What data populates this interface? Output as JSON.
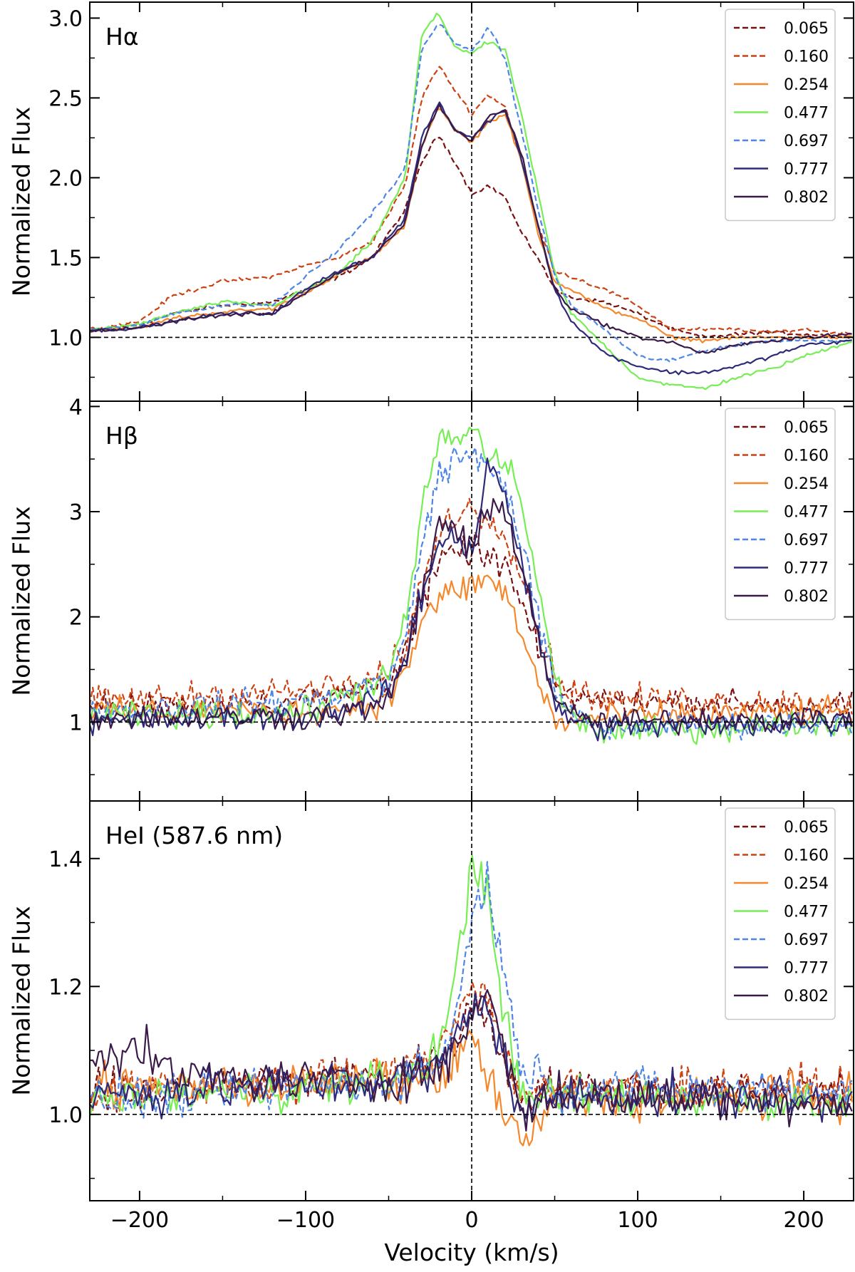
{
  "colors": {
    "0.065": "#7a1010",
    "0.160": "#cc4212",
    "0.254": "#f5882c",
    "0.477": "#77ee55",
    "0.697": "#4f86e6",
    "0.777": "#2e2a7a",
    "0.802": "#3a1a4a"
  },
  "chart_data": [
    {
      "type": "line",
      "title": "Hα",
      "xlabel": "",
      "ylabel": "Normalized Flux",
      "xlim": [
        -230,
        230
      ],
      "ylim": [
        0.6,
        3.1
      ],
      "yticks": [
        1.0,
        1.5,
        2.0,
        2.5,
        3.0
      ],
      "ytick_labels": [
        "1.0",
        "1.5",
        "2.0",
        "2.5",
        "3.0"
      ],
      "xticks": [
        -200,
        -100,
        0,
        100,
        200
      ],
      "noise": 0.012,
      "legend_position": "top-right",
      "series": [
        {
          "name": "0.065",
          "dashed": true,
          "x": [
            -230,
            -200,
            -180,
            -150,
            -120,
            -100,
            -80,
            -60,
            -40,
            -30,
            -20,
            -10,
            0,
            10,
            20,
            30,
            40,
            50,
            60,
            80,
            100,
            120,
            140,
            160,
            180,
            200,
            230
          ],
          "y": [
            1.04,
            1.08,
            1.15,
            1.2,
            1.22,
            1.3,
            1.38,
            1.5,
            1.8,
            2.1,
            2.27,
            2.1,
            1.9,
            1.95,
            1.88,
            1.65,
            1.5,
            1.3,
            1.25,
            1.22,
            1.15,
            1.05,
            1.0,
            1.02,
            1.03,
            1.02,
            1.0
          ]
        },
        {
          "name": "0.160",
          "dashed": true,
          "x": [
            -230,
            -200,
            -180,
            -150,
            -120,
            -100,
            -80,
            -60,
            -40,
            -30,
            -20,
            -10,
            0,
            10,
            20,
            30,
            40,
            50,
            60,
            80,
            100,
            120,
            140,
            160,
            180,
            200,
            230
          ],
          "y": [
            1.05,
            1.1,
            1.26,
            1.35,
            1.38,
            1.45,
            1.5,
            1.6,
            1.95,
            2.5,
            2.7,
            2.55,
            2.4,
            2.52,
            2.45,
            2.1,
            1.7,
            1.42,
            1.38,
            1.3,
            1.2,
            1.05,
            1.05,
            1.05,
            1.03,
            1.05,
            1.02
          ]
        },
        {
          "name": "0.254",
          "dashed": false,
          "x": [
            -230,
            -200,
            -180,
            -150,
            -120,
            -100,
            -80,
            -60,
            -40,
            -30,
            -20,
            -10,
            0,
            10,
            20,
            30,
            40,
            50,
            60,
            80,
            100,
            120,
            140,
            160,
            180,
            200,
            230
          ],
          "y": [
            1.04,
            1.06,
            1.12,
            1.16,
            1.18,
            1.28,
            1.4,
            1.5,
            1.7,
            2.2,
            2.45,
            2.3,
            2.22,
            2.35,
            2.4,
            2.1,
            1.65,
            1.35,
            1.3,
            1.18,
            1.12,
            1.0,
            0.98,
            1.0,
            1.0,
            1.0,
            1.0
          ]
        },
        {
          "name": "0.477",
          "dashed": false,
          "x": [
            -230,
            -200,
            -180,
            -150,
            -120,
            -100,
            -80,
            -60,
            -40,
            -30,
            -20,
            -10,
            0,
            10,
            20,
            30,
            40,
            50,
            60,
            80,
            100,
            120,
            140,
            160,
            180,
            200,
            230
          ],
          "y": [
            1.05,
            1.08,
            1.15,
            1.22,
            1.2,
            1.3,
            1.4,
            1.6,
            2.0,
            2.9,
            3.03,
            2.82,
            2.78,
            2.85,
            2.8,
            2.4,
            1.9,
            1.4,
            1.15,
            0.95,
            0.75,
            0.7,
            0.68,
            0.75,
            0.8,
            0.88,
            0.98
          ]
        },
        {
          "name": "0.697",
          "dashed": true,
          "x": [
            -230,
            -200,
            -180,
            -150,
            -120,
            -100,
            -80,
            -60,
            -40,
            -30,
            -20,
            -10,
            0,
            10,
            20,
            30,
            40,
            50,
            60,
            80,
            100,
            120,
            140,
            160,
            180,
            200,
            230
          ],
          "y": [
            1.05,
            1.07,
            1.15,
            1.2,
            1.2,
            1.38,
            1.55,
            1.78,
            2.05,
            2.8,
            2.97,
            2.85,
            2.78,
            2.95,
            2.75,
            2.3,
            1.8,
            1.38,
            1.2,
            1.05,
            0.88,
            0.85,
            0.92,
            0.95,
            0.98,
            0.98,
            0.98
          ]
        },
        {
          "name": "0.777",
          "dashed": false,
          "x": [
            -230,
            -200,
            -180,
            -150,
            -120,
            -100,
            -80,
            -60,
            -40,
            -30,
            -20,
            -10,
            0,
            10,
            20,
            30,
            40,
            50,
            60,
            80,
            100,
            120,
            140,
            160,
            180,
            200,
            230
          ],
          "y": [
            1.04,
            1.06,
            1.1,
            1.15,
            1.15,
            1.3,
            1.42,
            1.5,
            1.75,
            2.25,
            2.47,
            2.3,
            2.25,
            2.35,
            2.43,
            2.12,
            1.7,
            1.3,
            1.1,
            0.9,
            0.82,
            0.78,
            0.78,
            0.82,
            0.88,
            0.95,
            0.98
          ]
        },
        {
          "name": "0.802",
          "dashed": false,
          "x": [
            -230,
            -200,
            -180,
            -150,
            -120,
            -100,
            -80,
            -60,
            -40,
            -30,
            -20,
            -10,
            0,
            10,
            20,
            30,
            40,
            50,
            60,
            80,
            100,
            120,
            140,
            160,
            180,
            200,
            230
          ],
          "y": [
            1.04,
            1.06,
            1.1,
            1.14,
            1.15,
            1.28,
            1.4,
            1.5,
            1.72,
            2.2,
            2.46,
            2.3,
            2.23,
            2.38,
            2.43,
            2.15,
            1.7,
            1.3,
            1.18,
            1.08,
            1.0,
            0.97,
            0.9,
            0.95,
            0.98,
            1.0,
            1.02
          ]
        }
      ]
    },
    {
      "type": "line",
      "title": "Hβ",
      "xlabel": "",
      "ylabel": "Normalized Flux",
      "xlim": [
        -230,
        230
      ],
      "ylim": [
        0.25,
        4.05
      ],
      "yticks": [
        1,
        2,
        3,
        4
      ],
      "ytick_labels": [
        "1",
        "2",
        "3",
        "4"
      ],
      "xticks": [
        -200,
        -100,
        0,
        100,
        200
      ],
      "noise": 0.13,
      "legend_position": "top-right",
      "series": [
        {
          "name": "0.065",
          "dashed": true,
          "x": [
            -230,
            -100,
            -70,
            -50,
            -40,
            -30,
            -20,
            -10,
            0,
            10,
            20,
            30,
            40,
            50,
            60,
            80,
            230
          ],
          "y": [
            1.15,
            1.2,
            1.3,
            1.4,
            1.7,
            2.1,
            2.5,
            2.6,
            2.65,
            2.55,
            2.5,
            2.1,
            1.7,
            1.35,
            1.25,
            1.2,
            1.15
          ]
        },
        {
          "name": "0.160",
          "dashed": true,
          "x": [
            -230,
            -100,
            -70,
            -50,
            -40,
            -30,
            -20,
            -10,
            0,
            10,
            20,
            30,
            40,
            50,
            60,
            80,
            230
          ],
          "y": [
            1.2,
            1.3,
            1.35,
            1.45,
            1.75,
            2.3,
            2.8,
            3.0,
            3.0,
            2.95,
            2.85,
            2.4,
            1.9,
            1.45,
            1.3,
            1.22,
            1.18
          ]
        },
        {
          "name": "0.254",
          "dashed": false,
          "x": [
            -230,
            -100,
            -70,
            -50,
            -40,
            -30,
            -20,
            -10,
            0,
            10,
            20,
            30,
            40,
            50,
            60,
            80,
            230
          ],
          "y": [
            1.1,
            1.1,
            1.15,
            1.2,
            1.5,
            1.95,
            2.15,
            2.25,
            2.3,
            2.35,
            2.25,
            1.8,
            1.4,
            1.0,
            1.0,
            1.05,
            1.1
          ]
        },
        {
          "name": "0.477",
          "dashed": false,
          "x": [
            -230,
            -100,
            -70,
            -50,
            -40,
            -30,
            -20,
            -10,
            0,
            10,
            20,
            30,
            40,
            50,
            60,
            80,
            230
          ],
          "y": [
            1.05,
            1.1,
            1.3,
            1.45,
            1.9,
            3.0,
            3.7,
            3.65,
            3.8,
            3.5,
            3.5,
            3.1,
            2.3,
            1.4,
            1.05,
            0.9,
            1.0
          ]
        },
        {
          "name": "0.697",
          "dashed": true,
          "x": [
            -230,
            -100,
            -70,
            -50,
            -40,
            -30,
            -20,
            -10,
            0,
            10,
            20,
            30,
            40,
            50,
            60,
            80,
            230
          ],
          "y": [
            1.1,
            1.2,
            1.3,
            1.4,
            1.75,
            2.7,
            3.35,
            3.5,
            3.55,
            3.4,
            3.3,
            2.7,
            2.0,
            1.3,
            1.05,
            0.95,
            1.0
          ]
        },
        {
          "name": "0.777",
          "dashed": false,
          "x": [
            -230,
            -100,
            -70,
            -50,
            -40,
            -30,
            -20,
            -10,
            0,
            10,
            20,
            30,
            40,
            50,
            60,
            80,
            230
          ],
          "y": [
            1.0,
            1.05,
            1.15,
            1.25,
            1.6,
            2.2,
            2.7,
            2.8,
            2.6,
            3.5,
            3.2,
            2.5,
            1.8,
            1.2,
            1.0,
            0.95,
            1.0
          ]
        },
        {
          "name": "0.802",
          "dashed": false,
          "x": [
            -230,
            -100,
            -70,
            -50,
            -40,
            -30,
            -20,
            -10,
            0,
            10,
            20,
            30,
            40,
            50,
            60,
            80,
            230
          ],
          "y": [
            1.05,
            1.05,
            1.1,
            1.2,
            1.55,
            2.2,
            2.9,
            2.85,
            2.6,
            3.0,
            3.05,
            2.5,
            1.8,
            1.25,
            1.05,
            1.0,
            1.05
          ]
        }
      ]
    },
    {
      "type": "line",
      "title": "HeI (587.6 nm)",
      "xlabel": "Velocity (km/s)",
      "ylabel": "Normalized Flux",
      "xlim": [
        -230,
        230
      ],
      "ylim": [
        0.865,
        1.49
      ],
      "yticks": [
        1.0,
        1.2,
        1.4
      ],
      "ytick_labels": [
        "1.0",
        "1.2",
        "1.4"
      ],
      "xticks": [
        -200,
        -100,
        0,
        100,
        200
      ],
      "xtick_labels": [
        "−200",
        "−100",
        "0",
        "100",
        "200"
      ],
      "noise": 0.035,
      "legend_position": "top-right",
      "series": [
        {
          "name": "0.065",
          "dashed": true,
          "x": [
            -230,
            -60,
            -40,
            -20,
            -10,
            0,
            10,
            20,
            30,
            50,
            230
          ],
          "y": [
            1.03,
            1.06,
            1.07,
            1.08,
            1.12,
            1.17,
            1.15,
            1.08,
            1.03,
            1.04,
            1.04
          ]
        },
        {
          "name": "0.160",
          "dashed": true,
          "x": [
            -230,
            -60,
            -40,
            -20,
            -10,
            0,
            10,
            20,
            30,
            50,
            230
          ],
          "y": [
            1.03,
            1.06,
            1.07,
            1.1,
            1.16,
            1.2,
            1.18,
            1.1,
            1.03,
            1.04,
            1.04
          ]
        },
        {
          "name": "0.254",
          "dashed": false,
          "x": [
            -230,
            -60,
            -40,
            -20,
            -10,
            0,
            10,
            20,
            30,
            50,
            230
          ],
          "y": [
            1.04,
            1.05,
            1.05,
            1.06,
            1.08,
            1.12,
            1.06,
            1.0,
            0.95,
            1.02,
            1.03
          ]
        },
        {
          "name": "0.477",
          "dashed": false,
          "x": [
            -230,
            -60,
            -40,
            -20,
            -10,
            0,
            10,
            20,
            30,
            50,
            230
          ],
          "y": [
            1.02,
            1.05,
            1.06,
            1.1,
            1.2,
            1.4,
            1.35,
            1.15,
            1.02,
            1.03,
            1.02
          ]
        },
        {
          "name": "0.697",
          "dashed": true,
          "x": [
            -230,
            -60,
            -40,
            -20,
            -10,
            0,
            10,
            20,
            30,
            50,
            230
          ],
          "y": [
            1.02,
            1.05,
            1.06,
            1.08,
            1.15,
            1.3,
            1.38,
            1.2,
            1.08,
            1.04,
            1.04
          ]
        },
        {
          "name": "0.777",
          "dashed": false,
          "x": [
            -230,
            -60,
            -40,
            -20,
            -10,
            0,
            10,
            20,
            30,
            50,
            230
          ],
          "y": [
            1.03,
            1.05,
            1.06,
            1.07,
            1.12,
            1.16,
            1.18,
            1.08,
            1.0,
            1.03,
            1.02
          ]
        },
        {
          "name": "0.802",
          "dashed": false,
          "x": [
            -230,
            -200,
            -180,
            -60,
            -40,
            -20,
            -10,
            0,
            10,
            20,
            30,
            50,
            230
          ],
          "y": [
            1.1,
            1.1,
            1.06,
            1.05,
            1.06,
            1.07,
            1.1,
            1.15,
            1.2,
            1.1,
            1.0,
            1.03,
            1.02
          ]
        }
      ]
    }
  ]
}
